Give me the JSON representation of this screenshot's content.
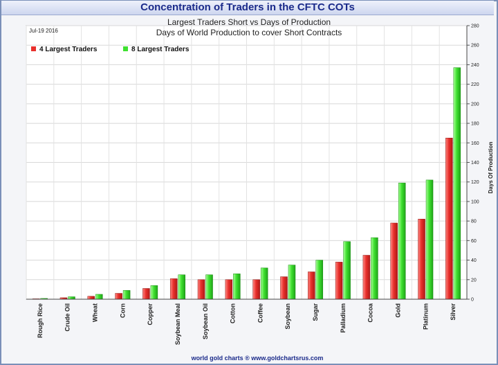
{
  "chart_data": {
    "type": "bar",
    "title": "Concentration of Traders in the CFTC COTs",
    "subtitle_1": "Largest Traders Short vs Days of Production",
    "subtitle_2": "Days of World Production to cover Short Contracts",
    "date": "Jul-19  2016",
    "ylabel": "Days Of Production",
    "ylim": [
      0,
      280
    ],
    "yticks": [
      0,
      20,
      40,
      60,
      80,
      100,
      120,
      140,
      160,
      180,
      200,
      220,
      240,
      260,
      280
    ],
    "grid": true,
    "legend_position": "top-left",
    "categories": [
      "Rough Rice",
      "Crude Oil",
      "Wheat",
      "Corn",
      "Copper",
      "Soybean Meal",
      "Soybean Oil",
      "Cotton",
      "Coffee",
      "Soybean",
      "Sugar",
      "Palladium",
      "Cocoa",
      "Gold",
      "Platinum",
      "Silver"
    ],
    "series": [
      {
        "name": "4 Largest Traders",
        "color": "#e8302c",
        "values": [
          0.3,
          1.5,
          3,
          6,
          11,
          21,
          20,
          20,
          20,
          23,
          28,
          38,
          45,
          78,
          82,
          165
        ]
      },
      {
        "name": "8 Largest Traders",
        "color": "#3fe030",
        "values": [
          0.8,
          2.5,
          5,
          9,
          14,
          25,
          25,
          26,
          32,
          35,
          40,
          59,
          63,
          119,
          122,
          237
        ]
      }
    ],
    "footer": "world gold charts ® www.goldchartsrus.com"
  }
}
